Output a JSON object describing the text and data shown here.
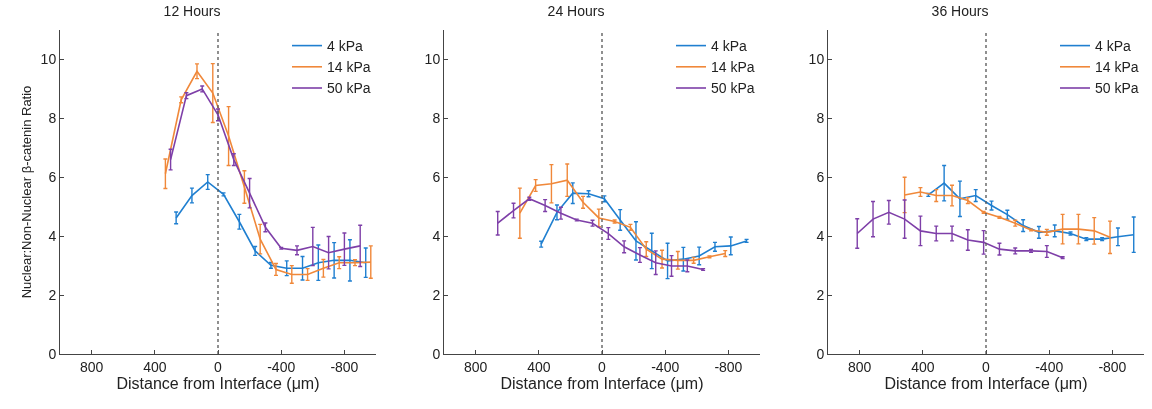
{
  "chart_data": [
    {
      "type": "line",
      "title": "12 Hours",
      "xlabel": "Distance from Interface (μm)",
      "ylabel": "Nuclear:Non-Nuclear β-catenin Ratio",
      "xlim": [
        1000,
        -1000
      ],
      "xticks": [
        800,
        400,
        0,
        -400,
        -800
      ],
      "ylim": [
        0,
        11
      ],
      "yticks": [
        0,
        2,
        4,
        6,
        8,
        10
      ],
      "grid": false,
      "legend": "top right",
      "line_style": "solid",
      "ref_lines": [
        {
          "axis": "x",
          "value": 0,
          "color": "#555555",
          "line_style": "dotted"
        }
      ],
      "series": [
        {
          "name": "4 kPa",
          "color": "#1f7fd0",
          "x": [
            265,
            165,
            65,
            -35,
            -135,
            -235,
            -335,
            -435,
            -535,
            -635,
            -735,
            -835,
            -935
          ],
          "values": [
            4.62,
            5.38,
            5.84,
            5.42,
            4.49,
            3.5,
            3.01,
            2.91,
            2.91,
            3.1,
            3.18,
            3.18,
            3.1
          ],
          "errors": [
            0.2,
            0.25,
            0.25,
            0.05,
            0.25,
            0.15,
            0.1,
            0.25,
            0.4,
            0.6,
            0.6,
            0.7,
            0.5
          ]
        },
        {
          "name": "14 kPa",
          "color": "#f0883a",
          "x": [
            333,
            233,
            133,
            33,
            -67,
            -167,
            -267,
            -367,
            -467,
            -567,
            -667,
            -767,
            -867,
            -967
          ],
          "values": [
            6.12,
            8.63,
            9.6,
            8.86,
            7.4,
            5.67,
            3.9,
            2.87,
            2.7,
            2.7,
            2.91,
            3.1,
            3.1,
            3.12
          ],
          "errors": [
            0.5,
            0.1,
            0.25,
            1.0,
            1.0,
            0.55,
            0.5,
            0.2,
            0.3,
            0.2,
            0.3,
            0.2,
            0.1,
            0.55
          ]
        },
        {
          "name": "50 kPa",
          "color": "#7e3fa8",
          "x": [
            300,
            200,
            100,
            0,
            -100,
            -200,
            -300,
            -400,
            -500,
            -600,
            -700,
            -800,
            -900
          ],
          "values": [
            6.6,
            8.77,
            9.0,
            8.12,
            6.6,
            5.46,
            4.3,
            3.59,
            3.52,
            3.65,
            3.44,
            3.56,
            3.67
          ],
          "errors": [
            0.35,
            0.1,
            0.1,
            0.2,
            0.2,
            0.5,
            0.15,
            0.03,
            0.15,
            0.65,
            0.55,
            0.55,
            0.7
          ]
        }
      ]
    },
    {
      "type": "line",
      "title": "24 Hours",
      "xlabel": "Distance from Interface (μm)",
      "xlim": [
        1000,
        -1000
      ],
      "xticks": [
        800,
        400,
        0,
        -400,
        -800
      ],
      "ylim": [
        0,
        11
      ],
      "yticks": [
        0,
        2,
        4,
        6,
        8,
        10
      ],
      "grid": false,
      "legend": "top right",
      "line_style": "solid",
      "ref_lines": [
        {
          "axis": "x",
          "value": 0,
          "color": "#555555",
          "line_style": "dotted"
        }
      ],
      "series": [
        {
          "name": "4 kPa",
          "color": "#1f7fd0",
          "x": [
            385,
            285,
            185,
            85,
            -15,
            -115,
            -215,
            -315,
            -415,
            -515,
            -615,
            -715,
            -815,
            -915
          ],
          "values": [
            3.73,
            4.81,
            5.46,
            5.44,
            5.27,
            4.55,
            3.84,
            3.5,
            3.16,
            3.22,
            3.33,
            3.64,
            3.67,
            3.84
          ],
          "errors": [
            0.1,
            0.25,
            0.35,
            0.1,
            0.1,
            0.35,
            0.65,
            0.6,
            0.6,
            0.4,
            0.3,
            0.15,
            0.3,
            0.05
          ]
        },
        {
          "name": "14 kPa",
          "color": "#f0883a",
          "x": [
            520,
            420,
            320,
            220,
            120,
            20,
            -80,
            -180,
            -280,
            -380,
            -480,
            -580,
            -680,
            -780
          ],
          "values": [
            4.78,
            5.72,
            5.78,
            5.9,
            5.15,
            4.62,
            4.5,
            4.3,
            3.56,
            3.22,
            3.18,
            3.18,
            3.3,
            3.41
          ],
          "errors": [
            0.85,
            0.2,
            0.65,
            0.55,
            0.2,
            0.3,
            0.05,
            0.1,
            0.25,
            0.3,
            0.3,
            0.1,
            0.03,
            0.1
          ]
        },
        {
          "name": "50 kPa",
          "color": "#7e3fa8",
          "x": [
            660,
            560,
            460,
            360,
            260,
            160,
            60,
            -40,
            -140,
            -240,
            -340,
            -440,
            -540,
            -640
          ],
          "values": [
            4.44,
            4.87,
            5.27,
            5.04,
            4.78,
            4.55,
            4.44,
            4.09,
            3.64,
            3.36,
            3.1,
            2.99,
            2.99,
            2.87
          ],
          "errors": [
            0.4,
            0.25,
            0.05,
            0.2,
            0.2,
            0.03,
            0.1,
            0.2,
            0.2,
            0.25,
            0.4,
            0.35,
            0.2,
            0.03
          ]
        }
      ]
    },
    {
      "type": "line",
      "title": "36 Hours",
      "xlabel": "Distance from Interface (μm)",
      "xlim": [
        1000,
        -1000
      ],
      "xticks": [
        800,
        400,
        0,
        -400,
        -800
      ],
      "ylim": [
        0,
        11
      ],
      "yticks": [
        0,
        2,
        4,
        6,
        8,
        10
      ],
      "grid": false,
      "legend": "top right",
      "line_style": "solid",
      "ref_lines": [
        {
          "axis": "x",
          "value": 0,
          "color": "#555555",
          "line_style": "dotted"
        }
      ],
      "series": [
        {
          "name": "4 kPa",
          "color": "#1f7fd0",
          "x": [
            365,
            265,
            165,
            65,
            -35,
            -135,
            -235,
            -335,
            -435,
            -535,
            -635,
            -735,
            -835,
            -935
          ],
          "values": [
            5.4,
            5.8,
            5.27,
            5.38,
            5.04,
            4.73,
            4.36,
            4.13,
            4.18,
            4.09,
            3.9,
            3.9,
            3.98,
            4.05
          ],
          "errors": [
            0.05,
            0.6,
            0.6,
            0.2,
            0.15,
            0.15,
            0.2,
            0.2,
            0.2,
            0.05,
            0.05,
            0.05,
            0.3,
            0.6
          ]
        },
        {
          "name": "14 kPa",
          "color": "#f0883a",
          "x": [
            515,
            415,
            315,
            215,
            115,
            15,
            -85,
            -185,
            -285,
            -385,
            -485,
            -585,
            -685,
            -785
          ],
          "values": [
            5.4,
            5.5,
            5.38,
            5.38,
            5.21,
            4.81,
            4.64,
            4.44,
            4.21,
            4.13,
            4.24,
            4.24,
            4.18,
            3.96
          ],
          "errors": [
            0.6,
            0.15,
            0.2,
            0.35,
            0.1,
            0.03,
            0.03,
            0.1,
            0.03,
            0.1,
            0.5,
            0.5,
            0.45,
            0.55
          ]
        },
        {
          "name": "50 kPa",
          "color": "#7e3fa8",
          "x": [
            815,
            715,
            615,
            515,
            415,
            315,
            215,
            115,
            15,
            -85,
            -185,
            -285,
            -385,
            -485
          ],
          "values": [
            4.09,
            4.58,
            4.81,
            4.58,
            4.18,
            4.09,
            4.09,
            3.87,
            3.79,
            3.56,
            3.5,
            3.5,
            3.48,
            3.27
          ],
          "errors": [
            0.5,
            0.6,
            0.4,
            0.65,
            0.5,
            0.25,
            0.25,
            0.35,
            0.4,
            0.2,
            0.1,
            0.05,
            0.2,
            0.03
          ]
        }
      ]
    }
  ]
}
